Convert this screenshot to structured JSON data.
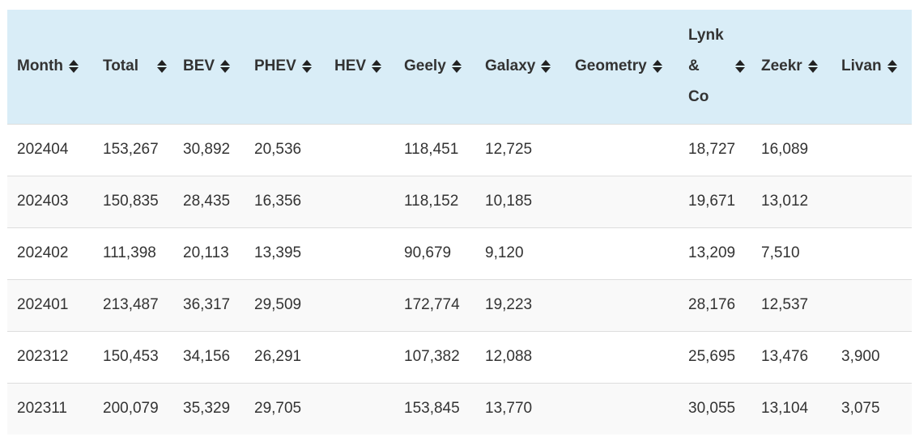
{
  "table": {
    "headers": [
      "Month",
      "Total",
      "BEV",
      "PHEV",
      "HEV",
      "Geely",
      "Galaxy",
      "Geometry",
      "Lynk & Co",
      "Zeekr",
      "Livan"
    ],
    "lynk_header_lines": [
      "Lynk",
      "&",
      "Co"
    ],
    "rows": [
      [
        "202404",
        "153,267",
        "30,892",
        "20,536",
        "",
        "118,451",
        "12,725",
        "",
        "18,727",
        "16,089",
        ""
      ],
      [
        "202403",
        "150,835",
        "28,435",
        "16,356",
        "",
        "118,152",
        "10,185",
        "",
        "19,671",
        "13,012",
        ""
      ],
      [
        "202402",
        "111,398",
        "20,113",
        "13,395",
        "",
        "90,679",
        "9,120",
        "",
        "13,209",
        "7,510",
        ""
      ],
      [
        "202401",
        "213,487",
        "36,317",
        "29,509",
        "",
        "172,774",
        "19,223",
        "",
        "28,176",
        "12,537",
        ""
      ],
      [
        "202312",
        "150,453",
        "34,156",
        "26,291",
        "",
        "107,382",
        "12,088",
        "",
        "25,695",
        "13,476",
        "3,900"
      ],
      [
        "202311",
        "200,079",
        "35,329",
        "29,705",
        "",
        "153,845",
        "13,770",
        "",
        "30,055",
        "13,104",
        "3,075"
      ]
    ]
  },
  "colors": {
    "header_bg": "#d9edf7",
    "stripe_bg": "#f9f9f9",
    "border": "#dddddd",
    "text": "#333333"
  },
  "icons": {
    "sort": "sort-both-icon"
  }
}
